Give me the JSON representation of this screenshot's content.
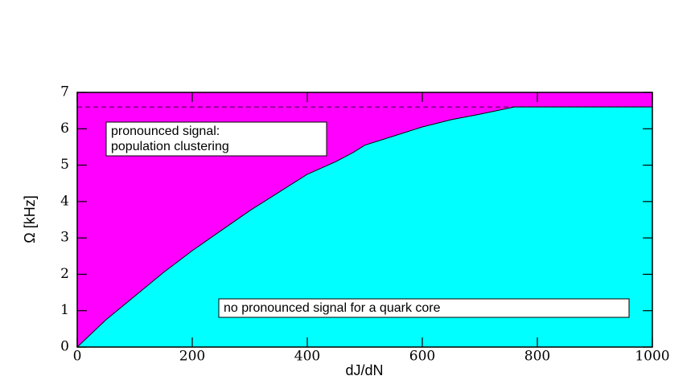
{
  "chart_data": {
    "type": "area",
    "x_label": "dJ/dN",
    "y_label": "Ω [kHz]",
    "x": [
      0,
      50,
      100,
      150,
      200,
      250,
      300,
      350,
      400,
      450,
      480,
      500,
      550,
      600,
      650,
      700,
      760,
      1000
    ],
    "values": [
      0,
      0.75,
      1.4,
      2.05,
      2.65,
      3.2,
      3.75,
      4.25,
      4.75,
      5.1,
      5.35,
      5.55,
      5.8,
      6.05,
      6.25,
      6.4,
      6.6,
      6.6
    ],
    "color": "#00ffff",
    "background_color": "#ff00ff",
    "reference_line": {
      "value": 6.6,
      "style": "dashed"
    },
    "annotations": [
      {
        "lines": [
          "pronounced signal:",
          "population clustering"
        ]
      },
      {
        "lines": [
          "no pronounced signal for a quark core"
        ]
      }
    ],
    "xlim": [
      0,
      1000
    ],
    "xticks": [
      0,
      200,
      400,
      600,
      800,
      1000
    ],
    "ylim": [
      0,
      7
    ],
    "yticks": [
      0,
      1,
      2,
      3,
      4,
      5,
      6,
      7
    ]
  }
}
